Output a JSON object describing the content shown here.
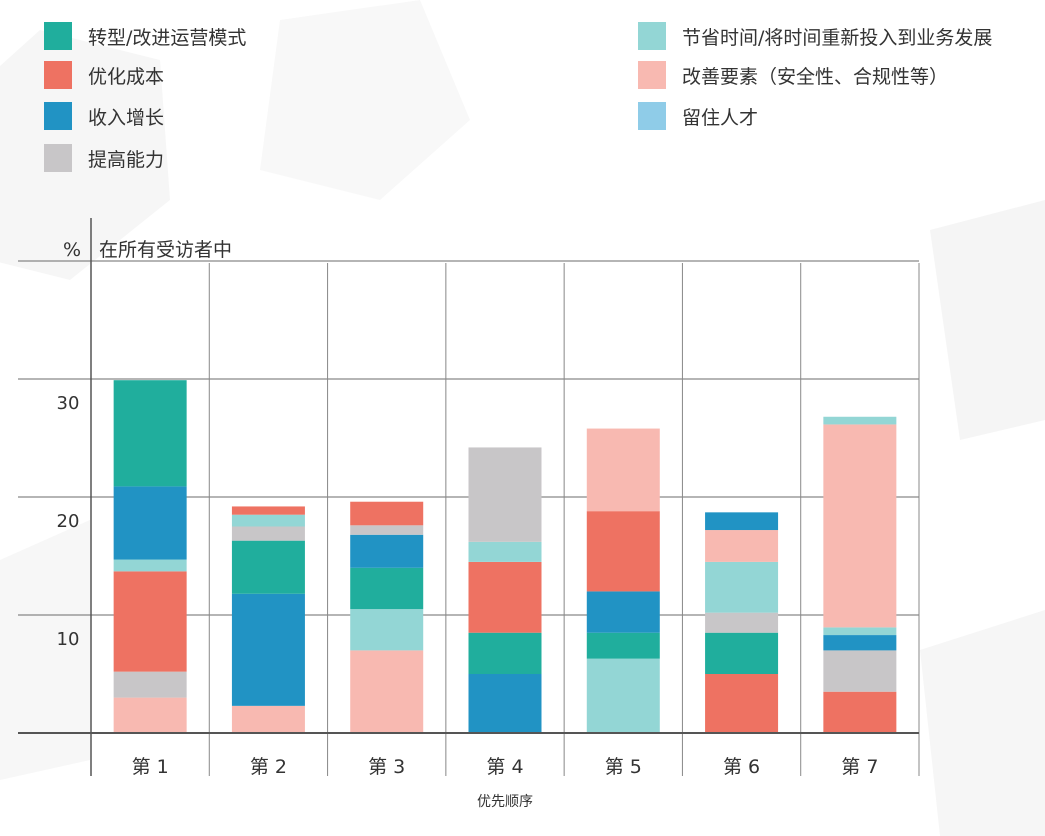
{
  "chart_data": {
    "type": "bar",
    "stacked": true,
    "unit_label": "%",
    "ylabel": "在所有受访者中",
    "xlabel": "优先顺序",
    "categories": [
      "第 1",
      "第 2",
      "第 3",
      "第 4",
      "第 5",
      "第 6",
      "第 7"
    ],
    "y_ticks": [
      10,
      20,
      30
    ],
    "ylim": [
      0,
      40
    ],
    "grid": true,
    "legend_position": "top",
    "series": [
      {
        "name": "转型/改进运营模式",
        "color": "#20AE9D",
        "values": [
          9,
          4.5,
          3.5,
          3.5,
          2.2,
          3.5,
          0
        ]
      },
      {
        "name": "优化成本",
        "color": "#EE7262",
        "values": [
          8.5,
          0.7,
          2,
          6,
          6.8,
          5,
          3.5
        ]
      },
      {
        "name": "收入增长",
        "color": "#2193C4",
        "values": [
          6.2,
          9.5,
          2.8,
          5,
          3.5,
          1.5,
          1.3
        ]
      },
      {
        "name": "提高能力",
        "color": "#C8C6C8",
        "values": [
          2.2,
          1.2,
          0.8,
          8,
          0,
          1.7,
          3.5
        ]
      },
      {
        "name": "节省时间/将时间重新投入到业务发展",
        "color": "#93D6D5",
        "values": [
          1,
          1,
          3.5,
          1.7,
          6.3,
          4.3,
          1.3
        ]
      },
      {
        "name": "改善要素（安全性、合规性等）",
        "color": "#F8B9B1",
        "values": [
          3,
          2.3,
          7,
          0,
          7,
          2.7,
          17.2
        ]
      },
      {
        "name": "留住人才",
        "color": "#8FCCE8",
        "values": [
          0,
          0,
          0,
          0,
          0,
          0,
          0
        ]
      }
    ],
    "stack_order": [
      [
        "改善要素（安全性、合规性等）",
        "提高能力",
        "优化成本",
        "节省时间/将时间重新投入到业务发展",
        "收入增长",
        "转型/改进运营模式"
      ],
      [
        "改善要素（安全性、合规性等）",
        "收入增长",
        "转型/改进运营模式",
        "提高能力",
        "节省时间/将时间重新投入到业务发展",
        "优化成本"
      ],
      [
        "改善要素（安全性、合规性等）",
        "节省时间/将时间重新投入到业务发展",
        "转型/改进运营模式",
        "收入增长",
        "提高能力",
        "优化成本"
      ],
      [
        "收入增长",
        "转型/改进运营模式",
        "优化成本",
        "节省时间/将时间重新投入到业务发展",
        "提高能力"
      ],
      [
        "节省时间/将时间重新投入到业务发展",
        "转型/改进运营模式",
        "收入增长",
        "优化成本",
        "改善要素（安全性、合规性等）"
      ],
      [
        "优化成本",
        "转型/改进运营模式",
        "提高能力",
        "节省时间/将时间重新投入到业务发展",
        "改善要素（安全性、合规性等）",
        "收入增长"
      ],
      [
        "优化成本",
        "提高能力",
        "收入增长",
        "节省时间/将时间重新投入到业务发展",
        "改善要素（安全性、合规性等）",
        "节省时间/将时间重新投入到业务发展"
      ]
    ]
  }
}
